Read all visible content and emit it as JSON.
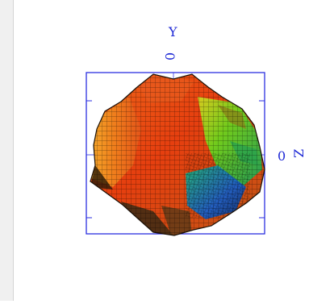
{
  "viewer": {
    "axis_y_label": "Y",
    "axis_y_zero": "0",
    "axis_z_label": "Z",
    "axis_z_zero": "0"
  },
  "colors": {
    "frame": "#2b2fe0",
    "background": "#ffffff",
    "left_margin": "#f0f0f0"
  },
  "surface": {
    "description_icon": "3d-surface-plot-icon"
  }
}
